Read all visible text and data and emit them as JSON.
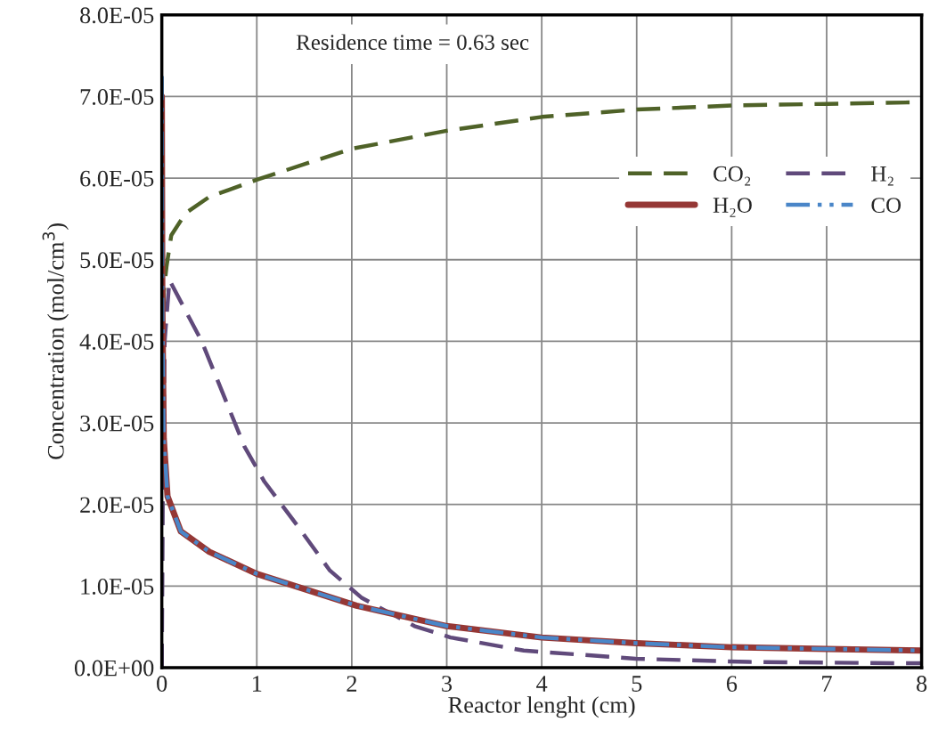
{
  "chart_data": {
    "type": "line",
    "xlabel": "Reactor lenght (cm)",
    "ylabel": "Concentration (mol/cm$^{3}$)",
    "annotations": [
      "Residence time = 0.63 sec"
    ],
    "series": [
      {
        "name": "CO₂",
        "color": "#4f6228",
        "line_style": "dashed",
        "x": [
          0,
          0.005,
          0.02,
          0.05,
          0.1,
          0.25,
          0.5,
          1,
          2,
          3,
          4,
          5,
          6,
          7,
          8
        ],
        "values": [
          0,
          3e-05,
          4.6e-05,
          4.92e-05,
          5.3e-05,
          5.57e-05,
          5.77e-05,
          5.98e-05,
          6.36e-05,
          6.58e-05,
          6.75e-05,
          6.84e-05,
          6.89e-05,
          6.91e-05,
          6.93e-05
        ]
      },
      {
        "name": "H₂",
        "color": "#604a7b",
        "line_style": "dashed",
        "x": [
          0,
          0.01,
          0.03,
          0.08,
          0.42,
          0.87,
          1.08,
          1.44,
          1.77,
          2.1,
          2.24,
          2.66,
          3.04,
          3.81,
          4.99,
          6.18,
          7.75,
          8
        ],
        "values": [
          0,
          2e-05,
          4e-05,
          4.75e-05,
          4e-05,
          2.71e-05,
          2.28e-05,
          1.72e-05,
          1.19e-05,
          8.6e-06,
          7.7e-06,
          5.1e-06,
          3.7e-06,
          2.1e-06,
          1.1e-06,
          7e-07,
          5.5e-07,
          5.5e-07
        ]
      },
      {
        "name": "H₂O",
        "color": "#953735",
        "line_style": "solid",
        "x": [
          0,
          0.005,
          0.02,
          0.06,
          0.2,
          0.5,
          1,
          2.05,
          3,
          4,
          5,
          6,
          7,
          8
        ],
        "values": [
          7e-05,
          4.5e-05,
          2.81e-05,
          2.1e-05,
          1.67e-05,
          1.42e-05,
          1.15e-05,
          7.6e-06,
          5.1e-06,
          3.7e-06,
          3e-06,
          2.5e-06,
          2.3e-06,
          2.1e-06
        ]
      },
      {
        "name": "CO",
        "color": "#4a86c8",
        "line_style": "dashdot",
        "x": [
          0,
          0.005,
          0.02,
          0.06,
          0.2,
          0.5,
          1,
          2.05,
          3,
          4,
          5,
          6,
          7,
          8
        ],
        "values": [
          7.25e-05,
          4.5e-05,
          2.81e-05,
          2.1e-05,
          1.67e-05,
          1.42e-05,
          1.15e-05,
          7.6e-06,
          5.1e-06,
          3.7e-06,
          3e-06,
          2.5e-06,
          2.3e-06,
          2.1e-06
        ]
      }
    ],
    "xlim": [
      0,
      8
    ],
    "xticks": [
      0,
      1,
      2,
      3,
      4,
      5,
      6,
      7,
      8
    ],
    "ylim": [
      0,
      8e-05
    ],
    "yticks": [
      {
        "value": 0,
        "label": "0.0E+00"
      },
      {
        "value": 1e-05,
        "label": "1.0E-05"
      },
      {
        "value": 2e-05,
        "label": "2.0E-05"
      },
      {
        "value": 3e-05,
        "label": "3.0E-05"
      },
      {
        "value": 4e-05,
        "label": "4.0E-05"
      },
      {
        "value": 5e-05,
        "label": "5.0E-05"
      },
      {
        "value": 6e-05,
        "label": "6.0E-05"
      },
      {
        "value": 7e-05,
        "label": "7.0E-05"
      },
      {
        "value": 8e-05,
        "label": "8.0E-05"
      }
    ],
    "grid": true,
    "legend": "top right",
    "marker": "none"
  }
}
